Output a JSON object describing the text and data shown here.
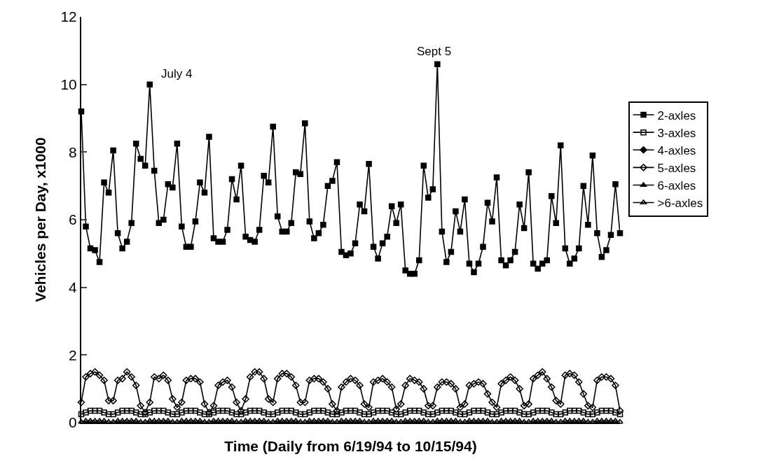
{
  "chart_data": {
    "type": "line",
    "xlabel": "Time (Daily from 6/19/94 to 10/15/94)",
    "ylabel": "Vehicles per Day, x1000",
    "categories": [
      null,
      null,
      null,
      null,
      null,
      null,
      null,
      null,
      null,
      null,
      null,
      null,
      null,
      null,
      null,
      null,
      null,
      null,
      null,
      null,
      null,
      null,
      null,
      null,
      null,
      null,
      null,
      null,
      null,
      null,
      null,
      null,
      null,
      null,
      null,
      null,
      null,
      null,
      null,
      null,
      null,
      null,
      null,
      null,
      null,
      null,
      null,
      null,
      null,
      null,
      null,
      null,
      null,
      null,
      null,
      null,
      null,
      null,
      null,
      null,
      null,
      null,
      null,
      null,
      null,
      null,
      null,
      null,
      null,
      null,
      null,
      null,
      null,
      null,
      null,
      null,
      null,
      null,
      null,
      null,
      null,
      null,
      null,
      null,
      null,
      null,
      null,
      null,
      null,
      null,
      null,
      null,
      null,
      null,
      null,
      null,
      null,
      null,
      null,
      null,
      null,
      null,
      null,
      null,
      null,
      null,
      null,
      null,
      null,
      null,
      null,
      null,
      null,
      null,
      null,
      null,
      null,
      null,
      null
    ],
    "ylim": [
      0,
      12
    ],
    "yticks": [
      0,
      2,
      4,
      6,
      8,
      10,
      12
    ],
    "tick_labels": "y",
    "legend": "right",
    "line_style": "solid",
    "annotations": [
      "July 4",
      "Sept 5"
    ],
    "series": [
      {
        "name": "2-axles",
        "color": "#000000",
        "marker": "square",
        "values": [
          9.2,
          5.8,
          5.15,
          5.1,
          4.75,
          7.1,
          6.8,
          8.05,
          5.6,
          5.15,
          5.35,
          5.9,
          8.25,
          7.8,
          7.6,
          10.0,
          7.45,
          5.9,
          6.0,
          7.05,
          6.95,
          8.25,
          5.8,
          5.2,
          5.2,
          5.95,
          7.1,
          6.8,
          8.45,
          5.45,
          5.35,
          5.35,
          5.7,
          7.2,
          6.6,
          7.6,
          5.5,
          5.4,
          5.35,
          5.7,
          7.3,
          7.1,
          8.75,
          6.1,
          5.65,
          5.65,
          5.9,
          7.4,
          7.35,
          8.85,
          5.95,
          5.45,
          5.6,
          5.85,
          7.0,
          7.15,
          7.7,
          5.05,
          4.95,
          5.0,
          5.3,
          6.45,
          6.25,
          7.65,
          5.2,
          4.85,
          5.3,
          5.5,
          6.4,
          5.9,
          6.45,
          4.5,
          4.4,
          4.4,
          4.8,
          7.6,
          6.65,
          6.9,
          10.6,
          5.65,
          4.75,
          5.05,
          6.25,
          5.65,
          6.6,
          4.7,
          4.45,
          4.7,
          5.2,
          6.5,
          5.95,
          7.25,
          4.8,
          4.65,
          4.8,
          5.05,
          6.45,
          5.75,
          7.4,
          4.7,
          4.55,
          4.7,
          4.8,
          6.7,
          5.9,
          8.2,
          5.15,
          4.7,
          4.85,
          5.15,
          7.0,
          5.85,
          7.9,
          5.6,
          4.9,
          5.1,
          5.55,
          7.05,
          5.6
        ]
      },
      {
        "name": "3-axles",
        "color": "#000000",
        "marker": "square-open",
        "values": [
          0.25,
          0.3,
          0.35,
          0.35,
          0.35,
          0.3,
          0.25,
          0.25,
          0.3,
          0.35,
          0.35,
          0.35,
          0.3,
          0.25,
          0.25,
          0.3,
          0.35,
          0.35,
          0.35,
          0.3,
          0.25,
          0.25,
          0.3,
          0.35,
          0.35,
          0.35,
          0.3,
          0.25,
          0.25,
          0.3,
          0.35,
          0.35,
          0.35,
          0.3,
          0.25,
          0.25,
          0.3,
          0.35,
          0.35,
          0.35,
          0.3,
          0.25,
          0.25,
          0.3,
          0.35,
          0.35,
          0.35,
          0.3,
          0.25,
          0.25,
          0.3,
          0.35,
          0.35,
          0.35,
          0.3,
          0.25,
          0.25,
          0.3,
          0.35,
          0.35,
          0.35,
          0.3,
          0.25,
          0.25,
          0.3,
          0.35,
          0.35,
          0.35,
          0.3,
          0.25,
          0.25,
          0.3,
          0.35,
          0.35,
          0.35,
          0.3,
          0.25,
          0.25,
          0.3,
          0.35,
          0.35,
          0.35,
          0.3,
          0.25,
          0.25,
          0.3,
          0.35,
          0.35,
          0.35,
          0.3,
          0.25,
          0.25,
          0.3,
          0.35,
          0.35,
          0.35,
          0.3,
          0.25,
          0.25,
          0.3,
          0.35,
          0.35,
          0.35,
          0.3,
          0.25,
          0.25,
          0.3,
          0.35,
          0.35,
          0.35,
          0.3,
          0.25,
          0.25,
          0.3,
          0.35,
          0.35,
          0.35,
          0.3,
          0.25
        ]
      },
      {
        "name": "4-axles",
        "color": "#000000",
        "marker": "diamond",
        "values": [
          null,
          null,
          null,
          null,
          null,
          null,
          null,
          null,
          null,
          null,
          null,
          null,
          null,
          null,
          null,
          null,
          null,
          null,
          null,
          null,
          null,
          null,
          null,
          null,
          null,
          null,
          null,
          null,
          null,
          null,
          null,
          null,
          null,
          null,
          null,
          null,
          null,
          null,
          null,
          null,
          null,
          null,
          null,
          null,
          null,
          null,
          null,
          null,
          null,
          null,
          null,
          null,
          null,
          null,
          null,
          null,
          null,
          null,
          null,
          null,
          null,
          null,
          null,
          null,
          null,
          null,
          null,
          null,
          null,
          null,
          null,
          null,
          null,
          null,
          null,
          null,
          null,
          null,
          null,
          null,
          null,
          null,
          null,
          null,
          null,
          null,
          null,
          null,
          null,
          null,
          null,
          null,
          null,
          null,
          null,
          null,
          null,
          null,
          null,
          null,
          null,
          null,
          null,
          null,
          null,
          null,
          null,
          null,
          null,
          null,
          null,
          null,
          null,
          null,
          null,
          null,
          null,
          null,
          null
        ]
      },
      {
        "name": "5-axles",
        "color": "#000000",
        "marker": "diamond-open",
        "values": [
          0.6,
          1.35,
          1.45,
          1.5,
          1.4,
          1.25,
          0.65,
          0.65,
          1.25,
          1.3,
          1.5,
          1.35,
          1.1,
          0.5,
          0.3,
          0.6,
          1.35,
          1.3,
          1.4,
          1.25,
          0.7,
          0.45,
          0.6,
          1.25,
          1.3,
          1.3,
          1.2,
          0.55,
          0.3,
          0.5,
          1.1,
          1.2,
          1.25,
          1.05,
          0.6,
          0.35,
          0.7,
          1.35,
          1.5,
          1.5,
          1.3,
          0.7,
          0.6,
          1.3,
          1.45,
          1.45,
          1.35,
          1.1,
          0.6,
          0.6,
          1.25,
          1.3,
          1.3,
          1.2,
          1.0,
          0.55,
          0.35,
          1.05,
          1.2,
          1.3,
          1.25,
          1.1,
          0.55,
          0.45,
          1.2,
          1.25,
          1.3,
          1.2,
          1.05,
          0.4,
          0.55,
          1.1,
          1.3,
          1.25,
          1.2,
          1.0,
          0.5,
          0.5,
          1.05,
          1.2,
          1.2,
          1.15,
          1.0,
          0.45,
          0.55,
          1.1,
          1.15,
          1.2,
          1.15,
          0.85,
          0.6,
          0.45,
          1.15,
          1.25,
          1.35,
          1.25,
          1.0,
          0.5,
          0.55,
          1.3,
          1.4,
          1.5,
          1.3,
          1.05,
          0.65,
          0.55,
          1.4,
          1.45,
          1.4,
          1.2,
          0.85,
          0.5,
          0.45,
          1.25,
          1.35,
          1.35,
          1.3,
          1.1,
          0.35
        ]
      },
      {
        "name": "6-axles",
        "color": "#000000",
        "marker": "triangle",
        "values": [
          null,
          null,
          null,
          null,
          null,
          null,
          null,
          null,
          null,
          null,
          null,
          null,
          null,
          null,
          null,
          null,
          null,
          null,
          null,
          null,
          null,
          null,
          null,
          null,
          null,
          null,
          null,
          null,
          null,
          null,
          null,
          null,
          null,
          null,
          null,
          null,
          null,
          null,
          null,
          null,
          null,
          null,
          null,
          null,
          null,
          null,
          null,
          null,
          null,
          null,
          null,
          null,
          null,
          null,
          null,
          null,
          null,
          null,
          null,
          null,
          null,
          null,
          null,
          null,
          null,
          null,
          null,
          null,
          null,
          null,
          null,
          null,
          null,
          null,
          null,
          null,
          null,
          null,
          null,
          null,
          null,
          null,
          null,
          null,
          null,
          null,
          null,
          null,
          null,
          null,
          null,
          null,
          null,
          null,
          null,
          null,
          null,
          null,
          null,
          null,
          null,
          null,
          null,
          null,
          null,
          null,
          null,
          null,
          null,
          null,
          null,
          null,
          null,
          null,
          null,
          null,
          null,
          null,
          null
        ]
      },
      {
        "name": ">6-axles",
        "color": "#000000",
        "marker": "triangle-open",
        "values": [
          0.02,
          0.05,
          0.05,
          0.05,
          0.05,
          0.05,
          0.02,
          0.02,
          0.05,
          0.05,
          0.05,
          0.05,
          0.05,
          0.02,
          0.02,
          0.05,
          0.05,
          0.05,
          0.05,
          0.05,
          0.02,
          0.02,
          0.05,
          0.05,
          0.05,
          0.05,
          0.05,
          0.02,
          0.02,
          0.05,
          0.05,
          0.05,
          0.05,
          0.05,
          0.02,
          0.02,
          0.05,
          0.05,
          0.05,
          0.05,
          0.05,
          0.02,
          0.02,
          0.05,
          0.05,
          0.05,
          0.05,
          0.05,
          0.02,
          0.02,
          0.05,
          0.05,
          0.05,
          0.05,
          0.05,
          0.02,
          0.02,
          0.05,
          0.05,
          0.05,
          0.05,
          0.05,
          0.02,
          0.02,
          0.05,
          0.05,
          0.05,
          0.05,
          0.05,
          0.02,
          0.02,
          0.05,
          0.05,
          0.05,
          0.05,
          0.05,
          0.02,
          0.02,
          0.05,
          0.05,
          0.05,
          0.05,
          0.05,
          0.02,
          0.02,
          0.05,
          0.05,
          0.05,
          0.05,
          0.05,
          0.02,
          0.02,
          0.05,
          0.05,
          0.05,
          0.05,
          0.05,
          0.02,
          0.02,
          0.05,
          0.05,
          0.05,
          0.05,
          0.05,
          0.02,
          0.02,
          0.05,
          0.05,
          0.05,
          0.05,
          0.05,
          0.02,
          0.02,
          0.05,
          0.05,
          0.05,
          0.05,
          0.05,
          0.02
        ]
      }
    ]
  }
}
